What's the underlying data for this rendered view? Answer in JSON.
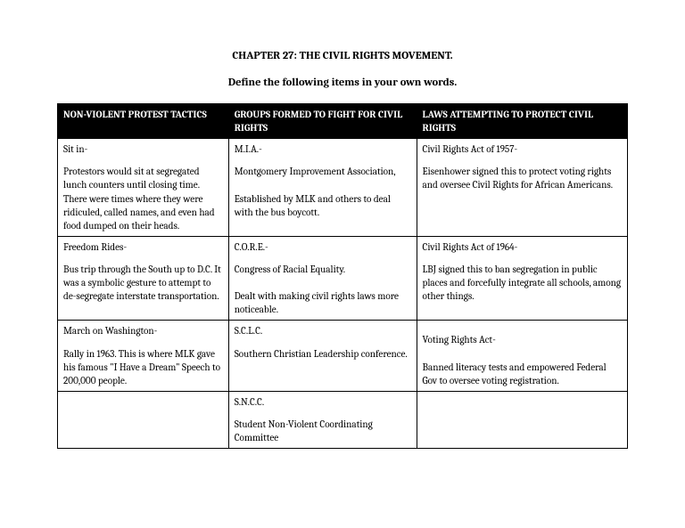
{
  "title": "CHAPTER 27: THE CIVIL RIGHTS MOVEMENT.",
  "subtitle": "Define the following items in your own words.",
  "table": {
    "headers": [
      "NON-VIOLENT PROTEST TACTICS",
      "GROUPS FORMED TO FIGHT FOR CIVIL RIGHTS",
      "LAWS ATTEMPTING TO PROTECT CIVIL RIGHTS"
    ],
    "rows": [
      {
        "c1_term": "Sit in-",
        "c1_desc": "Protestors would sit at segregated lunch counters until closing time. There were times where they were ridiculed, called names, and even had food dumped on their heads.",
        "c2_term": "M.I.A.-",
        "c2_desc": "Montgomery Improvement Association,\n\nEstablished by MLK and others to deal with the bus boycott.",
        "c3_term": "Civil Rights Act of 1957-",
        "c3_desc": "Eisenhower signed this to protect voting rights and oversee Civil Rights for African Americans."
      },
      {
        "c1_term": "Freedom Rides-",
        "c1_desc": "Bus trip through the South up to D.C.  It was a symbolic gesture to attempt to de-segregate interstate transportation.",
        "c2_term": "C.O.R.E.-",
        "c2_desc": "Congress of Racial Equality.\n\nDealt with making civil rights laws more noticeable.",
        "c3_term": "Civil Rights Act of 1964-",
        "c3_desc": "LBJ signed this to ban segregation in public places and forcefully integrate all schools, among other things."
      },
      {
        "c1_term": "March on Washington-",
        "c1_desc": "Rally in 1963.  This is where MLK gave his famous \"I Have a Dream\" Speech to 200,000 people.",
        "c2_term": "S.C.L.C.",
        "c2_desc": "Southern Christian Leadership conference.",
        "c3_term": "",
        "c3_desc": "Voting Rights Act-\n\nBanned literacy tests and empowered Federal Gov to oversee voting registration."
      },
      {
        "c1_term": "",
        "c1_desc": "",
        "c2_term": "S.N.C.C.",
        "c2_desc": "Student Non-Violent Coordinating Committee",
        "c3_term": "",
        "c3_desc": ""
      }
    ]
  }
}
